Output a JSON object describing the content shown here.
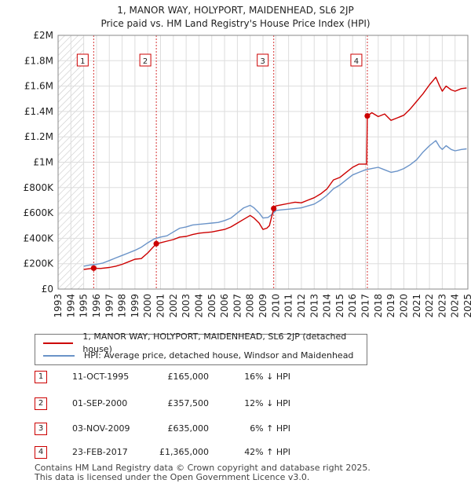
{
  "chart_data": {
    "type": "line",
    "title": "1, MANOR WAY, HOLYPORT, MAIDENHEAD, SL6 2JP",
    "subtitle": "Price paid vs. HM Land Registry's House Price Index (HPI)",
    "xlim": [
      1993,
      2025
    ],
    "ylim": [
      0,
      2000000
    ],
    "x_ticks": [
      1993,
      1994,
      1995,
      1996,
      1997,
      1998,
      1999,
      2000,
      2001,
      2002,
      2003,
      2004,
      2005,
      2006,
      2007,
      2008,
      2009,
      2010,
      2011,
      2012,
      2013,
      2014,
      2015,
      2016,
      2017,
      2018,
      2019,
      2020,
      2021,
      2022,
      2023,
      2024,
      2025
    ],
    "y_ticks": [
      {
        "value": 0,
        "label": "£0"
      },
      {
        "value": 200000,
        "label": "£200K"
      },
      {
        "value": 400000,
        "label": "£400K"
      },
      {
        "value": 600000,
        "label": "£600K"
      },
      {
        "value": 800000,
        "label": "£800K"
      },
      {
        "value": 1000000,
        "label": "£1M"
      },
      {
        "value": 1200000,
        "label": "£1.2M"
      },
      {
        "value": 1400000,
        "label": "£1.4M"
      },
      {
        "value": 1600000,
        "label": "£1.6M"
      },
      {
        "value": 1800000,
        "label": "£1.8M"
      },
      {
        "value": 2000000,
        "label": "£2M"
      }
    ],
    "hatch_until": 1995.0,
    "grid": true,
    "series": [
      {
        "name": "1, MANOR WAY, HOLYPORT, MAIDENHEAD, SL6 2JP (detached house)",
        "color": "#cc0000",
        "points": [
          [
            1995.0,
            155000
          ],
          [
            1995.78,
            165000
          ],
          [
            1996.3,
            162000
          ],
          [
            1997.0,
            170000
          ],
          [
            1997.5,
            180000
          ],
          [
            1998.0,
            195000
          ],
          [
            1998.5,
            215000
          ],
          [
            1999.0,
            235000
          ],
          [
            1999.5,
            240000
          ],
          [
            2000.0,
            285000
          ],
          [
            2000.67,
            357500
          ],
          [
            2001.0,
            365000
          ],
          [
            2001.5,
            378000
          ],
          [
            2002.0,
            390000
          ],
          [
            2002.5,
            410000
          ],
          [
            2003.0,
            415000
          ],
          [
            2003.5,
            430000
          ],
          [
            2004.0,
            440000
          ],
          [
            2004.5,
            445000
          ],
          [
            2005.0,
            450000
          ],
          [
            2005.5,
            460000
          ],
          [
            2006.0,
            470000
          ],
          [
            2006.5,
            490000
          ],
          [
            2007.0,
            520000
          ],
          [
            2007.5,
            550000
          ],
          [
            2008.0,
            580000
          ],
          [
            2008.3,
            560000
          ],
          [
            2008.7,
            520000
          ],
          [
            2009.0,
            470000
          ],
          [
            2009.3,
            480000
          ],
          [
            2009.5,
            500000
          ],
          [
            2009.84,
            635000
          ],
          [
            2010.0,
            655000
          ],
          [
            2010.5,
            665000
          ],
          [
            2011.0,
            675000
          ],
          [
            2011.5,
            685000
          ],
          [
            2012.0,
            680000
          ],
          [
            2012.5,
            700000
          ],
          [
            2013.0,
            720000
          ],
          [
            2013.5,
            750000
          ],
          [
            2014.0,
            790000
          ],
          [
            2014.5,
            860000
          ],
          [
            2015.0,
            880000
          ],
          [
            2015.5,
            920000
          ],
          [
            2016.0,
            960000
          ],
          [
            2016.5,
            985000
          ],
          [
            2017.1,
            985000
          ],
          [
            2017.15,
            1365000
          ],
          [
            2017.5,
            1390000
          ],
          [
            2018.0,
            1360000
          ],
          [
            2018.5,
            1380000
          ],
          [
            2019.0,
            1330000
          ],
          [
            2019.5,
            1350000
          ],
          [
            2020.0,
            1370000
          ],
          [
            2020.5,
            1420000
          ],
          [
            2021.0,
            1480000
          ],
          [
            2021.5,
            1540000
          ],
          [
            2022.0,
            1610000
          ],
          [
            2022.5,
            1670000
          ],
          [
            2022.8,
            1600000
          ],
          [
            2023.0,
            1560000
          ],
          [
            2023.3,
            1600000
          ],
          [
            2023.7,
            1570000
          ],
          [
            2024.0,
            1560000
          ],
          [
            2024.5,
            1580000
          ],
          [
            2024.9,
            1585000
          ]
        ]
      },
      {
        "name": "HPI: Average price, detached house, Windsor and Maidenhead",
        "color": "#6a93c8",
        "points": [
          [
            1995.0,
            180000
          ],
          [
            1995.5,
            190000
          ],
          [
            1996.0,
            195000
          ],
          [
            1996.5,
            205000
          ],
          [
            1997.0,
            225000
          ],
          [
            1997.5,
            245000
          ],
          [
            1998.0,
            265000
          ],
          [
            1998.5,
            285000
          ],
          [
            1999.0,
            305000
          ],
          [
            1999.5,
            330000
          ],
          [
            2000.0,
            365000
          ],
          [
            2000.5,
            395000
          ],
          [
            2001.0,
            410000
          ],
          [
            2001.5,
            420000
          ],
          [
            2002.0,
            450000
          ],
          [
            2002.5,
            480000
          ],
          [
            2003.0,
            490000
          ],
          [
            2003.5,
            505000
          ],
          [
            2004.0,
            510000
          ],
          [
            2004.5,
            515000
          ],
          [
            2005.0,
            520000
          ],
          [
            2005.5,
            525000
          ],
          [
            2006.0,
            540000
          ],
          [
            2006.5,
            560000
          ],
          [
            2007.0,
            600000
          ],
          [
            2007.5,
            640000
          ],
          [
            2008.0,
            660000
          ],
          [
            2008.3,
            640000
          ],
          [
            2008.7,
            600000
          ],
          [
            2009.0,
            560000
          ],
          [
            2009.4,
            565000
          ],
          [
            2009.84,
            600000
          ],
          [
            2010.0,
            620000
          ],
          [
            2010.5,
            625000
          ],
          [
            2011.0,
            630000
          ],
          [
            2011.5,
            635000
          ],
          [
            2012.0,
            640000
          ],
          [
            2012.5,
            655000
          ],
          [
            2013.0,
            670000
          ],
          [
            2013.5,
            700000
          ],
          [
            2014.0,
            740000
          ],
          [
            2014.5,
            790000
          ],
          [
            2015.0,
            820000
          ],
          [
            2015.5,
            860000
          ],
          [
            2016.0,
            900000
          ],
          [
            2016.5,
            920000
          ],
          [
            2017.0,
            940000
          ],
          [
            2017.5,
            950000
          ],
          [
            2018.0,
            960000
          ],
          [
            2018.5,
            940000
          ],
          [
            2019.0,
            920000
          ],
          [
            2019.5,
            930000
          ],
          [
            2020.0,
            950000
          ],
          [
            2020.5,
            980000
          ],
          [
            2021.0,
            1020000
          ],
          [
            2021.5,
            1080000
          ],
          [
            2022.0,
            1130000
          ],
          [
            2022.5,
            1170000
          ],
          [
            2022.8,
            1120000
          ],
          [
            2023.0,
            1100000
          ],
          [
            2023.3,
            1130000
          ],
          [
            2023.7,
            1100000
          ],
          [
            2024.0,
            1090000
          ],
          [
            2024.5,
            1100000
          ],
          [
            2024.9,
            1105000
          ]
        ]
      }
    ],
    "sale_markers": [
      {
        "label": "1",
        "x": 1995.78,
        "y": 165000
      },
      {
        "label": "2",
        "x": 2000.67,
        "y": 357500
      },
      {
        "label": "3",
        "x": 2009.84,
        "y": 635000
      },
      {
        "label": "4",
        "x": 2017.15,
        "y": 1365000
      }
    ]
  },
  "legend": [
    {
      "label": "1, MANOR WAY, HOLYPORT, MAIDENHEAD, SL6 2JP (detached house)",
      "color": "#cc0000"
    },
    {
      "label": "HPI: Average price, detached house, Windsor and Maidenhead",
      "color": "#6a93c8"
    }
  ],
  "sales": [
    {
      "num": "1",
      "date": "11-OCT-1995",
      "price": "£165,000",
      "hpi": "16% ↓ HPI"
    },
    {
      "num": "2",
      "date": "01-SEP-2000",
      "price": "£357,500",
      "hpi": "12% ↓ HPI"
    },
    {
      "num": "3",
      "date": "03-NOV-2009",
      "price": "£635,000",
      "hpi": "6% ↑ HPI"
    },
    {
      "num": "4",
      "date": "23-FEB-2017",
      "price": "£1,365,000",
      "hpi": "42% ↑ HPI"
    }
  ],
  "footer": {
    "line1": "Contains HM Land Registry data © Crown copyright and database right 2025.",
    "line2": "This data is licensed under the Open Government Licence v3.0."
  }
}
